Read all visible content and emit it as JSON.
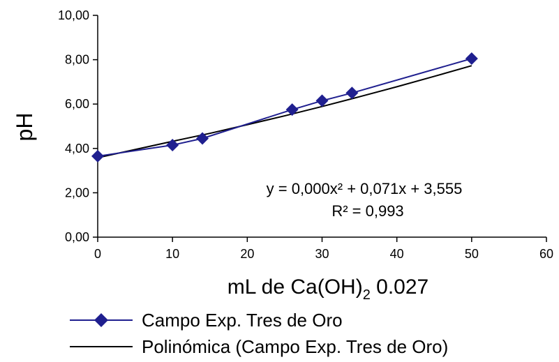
{
  "chart_data": {
    "type": "scatter",
    "xlabel_main": "mL de Ca(OH)",
    "xlabel_sub": "2",
    "xlabel_tail": " 0.027",
    "ylabel": "pH",
    "xlim": [
      0,
      60
    ],
    "ylim": [
      0,
      10
    ],
    "x_ticks": [
      "0",
      "10",
      "20",
      "30",
      "40",
      "50",
      "60"
    ],
    "y_ticks": [
      "0,00",
      "2,00",
      "4,00",
      "6,00",
      "8,00",
      "10,00"
    ],
    "grid": false,
    "legend_position": "bottom",
    "series": [
      {
        "name": "Campo Exp. Tres de Oro",
        "color": "#1f1f8f",
        "marker": "diamond",
        "x": [
          0,
          10,
          14,
          26,
          30,
          34,
          50
        ],
        "y": [
          3.65,
          4.15,
          4.45,
          5.75,
          6.15,
          6.5,
          8.05
        ]
      }
    ],
    "trendline": {
      "name": "Polinómica (Campo Exp. Tres de Oro)",
      "color": "#000000",
      "type": "polynomial",
      "x": [
        0,
        5,
        10,
        15,
        20,
        25,
        30,
        35,
        40,
        45,
        50
      ],
      "y": [
        3.58,
        3.95,
        4.32,
        4.68,
        5.07,
        5.47,
        5.89,
        6.33,
        6.78,
        7.25,
        7.73
      ]
    },
    "equation": "y = 0,000x² + 0,071x + 3,555",
    "r_squared": "R² = 0,993"
  }
}
